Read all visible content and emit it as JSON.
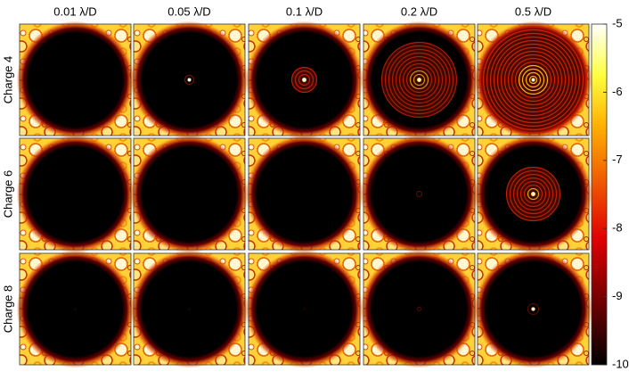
{
  "chart_data": {
    "type": "image-grid",
    "column_titles": [
      "0.01 λ/D",
      "0.05 λ/D",
      "0.1 λ/D",
      "0.2 λ/D",
      "0.5 λ/D"
    ],
    "row_labels": [
      "Charge 4",
      "Charge 6",
      "Charge 8"
    ],
    "colormap": "hot",
    "clim": [
      -10,
      -5
    ],
    "cticks": [
      -10,
      -9,
      -8,
      -7,
      -6,
      -5
    ]
  }
}
